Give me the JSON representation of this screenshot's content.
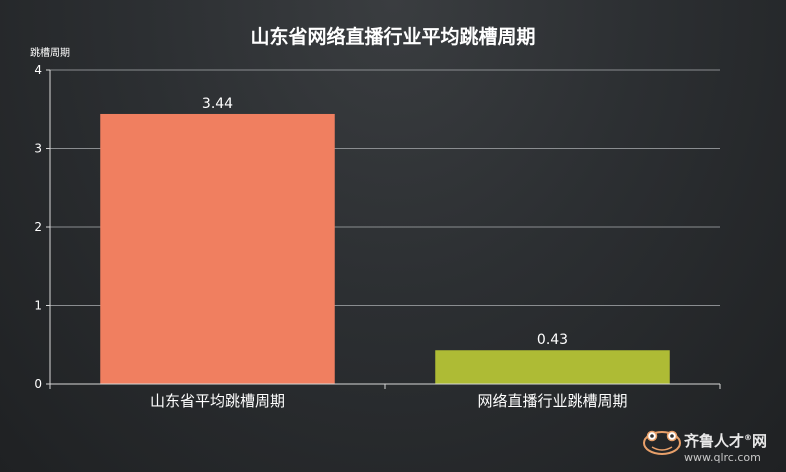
{
  "chart_data": {
    "type": "bar",
    "title": "山东省网络直播行业平均跳槽周期",
    "ylabel": "跳槽周期",
    "xlabel": "",
    "categories": [
      "山东省平均跳槽周期",
      "网络直播行业跳槽周期"
    ],
    "values": [
      3.44,
      0.43
    ],
    "data_labels": [
      "3.44",
      "0.43"
    ],
    "bar_colors": [
      "#f07f60",
      "#aebb35"
    ],
    "ylim": [
      0,
      4
    ],
    "yticks": [
      "0",
      "1",
      "2",
      "3",
      "4"
    ],
    "grid": true,
    "legend": "none"
  },
  "watermark": {
    "name": "齐鲁人才",
    "sup": "®",
    "suffix": "网",
    "url": "www.qlrc.com",
    "icon": "frog-logo-icon"
  }
}
